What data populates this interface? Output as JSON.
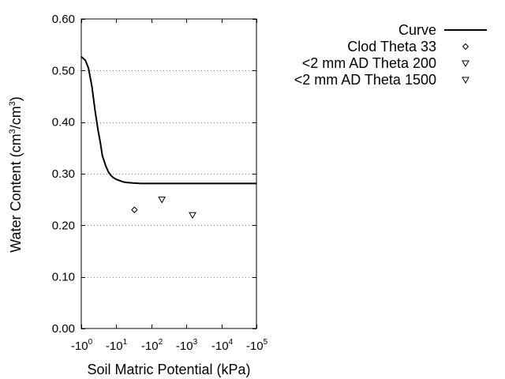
{
  "chart_data": {
    "type": "line",
    "xlabel": "Soil Matric Potential (kPa)",
    "ylabel": {
      "prefix": "Water Content (cm",
      "sup1": "3",
      "middle": "/cm",
      "sup2": "3",
      "suffix": ")"
    },
    "x_scale": "log",
    "xlim": [
      -1,
      -100000
    ],
    "ylim": [
      0.0,
      0.6
    ],
    "y_ticks": [
      "0.00",
      "0.10",
      "0.20",
      "0.30",
      "0.40",
      "0.50",
      "0.60"
    ],
    "y_tick_values": [
      0.0,
      0.1,
      0.2,
      0.3,
      0.4,
      0.5,
      0.6
    ],
    "x_ticks": [
      {
        "base": "-10",
        "exp": "0",
        "value": -1
      },
      {
        "base": "-10",
        "exp": "1",
        "value": -10
      },
      {
        "base": "-10",
        "exp": "2",
        "value": -100
      },
      {
        "base": "-10",
        "exp": "3",
        "value": -1000
      },
      {
        "base": "-10",
        "exp": "4",
        "value": -10000
      },
      {
        "base": "-10",
        "exp": "5",
        "value": -100000
      }
    ],
    "grid": {
      "horizontal": true,
      "style": "dotted"
    },
    "legend_position": "top-right, outside plot",
    "series": [
      {
        "name": "Curve",
        "kind": "line",
        "color": "#000000",
        "x": [
          -1,
          -1.3,
          -1.6,
          -2,
          -2.5,
          -3,
          -3.5,
          -4,
          -5,
          -6,
          -7,
          -8,
          -10,
          -13,
          -16,
          -20,
          -30,
          -50,
          -100,
          -1000,
          -10000,
          -100000
        ],
        "y": [
          0.527,
          0.52,
          0.505,
          0.47,
          0.42,
          0.385,
          0.36,
          0.335,
          0.315,
          0.303,
          0.297,
          0.293,
          0.289,
          0.286,
          0.284,
          0.283,
          0.282,
          0.281,
          0.281,
          0.281,
          0.281,
          0.281
        ]
      },
      {
        "name": "Clod Theta 33",
        "kind": "scatter",
        "marker": "diamond",
        "x": [
          -33
        ],
        "y": [
          0.23
        ]
      },
      {
        "name": "<2 mm AD Theta 200",
        "kind": "scatter",
        "marker": "triangle-down",
        "x": [
          -200
        ],
        "y": [
          0.25
        ]
      },
      {
        "name": "<2 mm AD Theta 1500",
        "kind": "scatter",
        "marker": "triangle-down",
        "x": [
          -1500
        ],
        "y": [
          0.22
        ]
      }
    ]
  }
}
